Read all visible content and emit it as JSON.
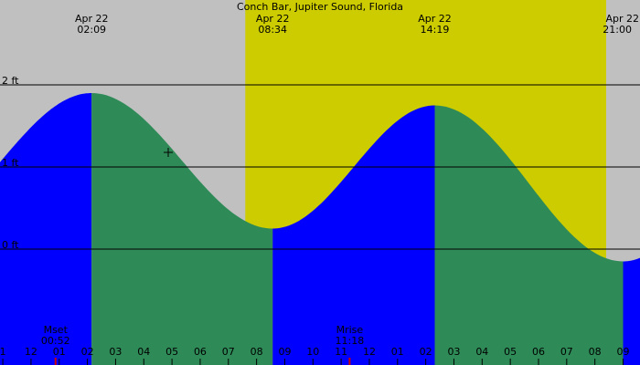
{
  "chart_data": {
    "type": "area",
    "title": "Conch Bar, Jupiter Sound, Florida",
    "y_unit": "ft",
    "y_ticks": [
      {
        "value": 0,
        "label": "0 ft"
      },
      {
        "value": 1,
        "label": "1 ft"
      },
      {
        "value": 2,
        "label": "2 ft"
      }
    ],
    "x_range_hours": [
      -1.1,
      21.6
    ],
    "daylight": {
      "start_hour": 7.6,
      "end_hour": 20.4
    },
    "events": [
      {
        "date": "Apr 22",
        "time": "02:09",
        "hour": 2.15,
        "height_ft": 1.9,
        "type": "high"
      },
      {
        "date": "Apr 22",
        "time": "08:34",
        "hour": 8.57,
        "height_ft": 0.25,
        "type": "low"
      },
      {
        "date": "Apr 22",
        "time": "14:19",
        "hour": 14.32,
        "height_ft": 1.75,
        "type": "high"
      },
      {
        "date": "Apr 22",
        "time": "21:00",
        "hour": 21.0,
        "height_ft": -0.15,
        "type": "low"
      }
    ],
    "moon": [
      {
        "label": "Mset",
        "time": "00:52",
        "hour": 0.87
      },
      {
        "label": "Mrise",
        "time": "11:18",
        "hour": 11.3
      }
    ],
    "x_ticks": [
      {
        "hour": -1,
        "label": "1"
      },
      {
        "hour": 0,
        "label": "12"
      },
      {
        "hour": 1,
        "label": "01"
      },
      {
        "hour": 2,
        "label": "02"
      },
      {
        "hour": 3,
        "label": "03"
      },
      {
        "hour": 4,
        "label": "04"
      },
      {
        "hour": 5,
        "label": "05"
      },
      {
        "hour": 6,
        "label": "06"
      },
      {
        "hour": 7,
        "label": "07"
      },
      {
        "hour": 8,
        "label": "08"
      },
      {
        "hour": 9,
        "label": "09"
      },
      {
        "hour": 10,
        "label": "10"
      },
      {
        "hour": 11,
        "label": "11"
      },
      {
        "hour": 12,
        "label": "12"
      },
      {
        "hour": 13,
        "label": "01"
      },
      {
        "hour": 14,
        "label": "02"
      },
      {
        "hour": 15,
        "label": "03"
      },
      {
        "hour": 16,
        "label": "04"
      },
      {
        "hour": 17,
        "label": "05"
      },
      {
        "hour": 18,
        "label": "06"
      },
      {
        "hour": 19,
        "label": "07"
      },
      {
        "hour": 20,
        "label": "08"
      },
      {
        "hour": 21,
        "label": "09"
      }
    ],
    "colors": {
      "night": "#c0c0c0",
      "day": "#cccc00",
      "rising": "#0000ff",
      "falling": "#2e8b57",
      "moon_mark": "#cc0000"
    }
  }
}
